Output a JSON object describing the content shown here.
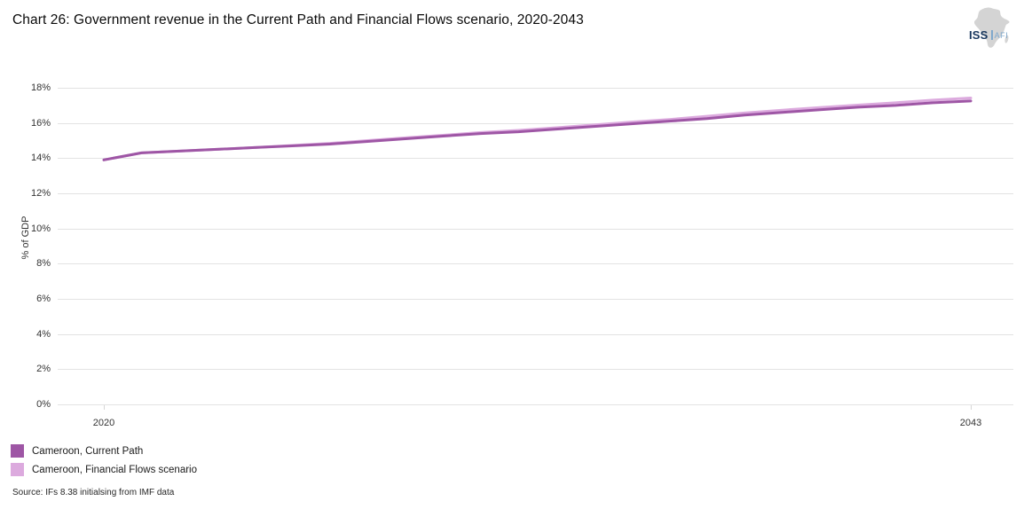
{
  "header": {
    "title": "Chart 26: Government revenue in the Current Path and Financial Flows scenario, 2020-2043",
    "logo": {
      "org": "ISS",
      "unit": "AFI"
    }
  },
  "chart_data": {
    "type": "line",
    "title": "Chart 26: Government revenue in the Current Path and Financial Flows scenario, 2020-2043",
    "xlabel": "",
    "ylabel": "% of GDP",
    "ylim": [
      0,
      18
    ],
    "y_ticks_percent": [
      0,
      2,
      4,
      6,
      8,
      10,
      12,
      14,
      16,
      18
    ],
    "y_tick_suffix": "%",
    "x": [
      2020,
      2021,
      2022,
      2023,
      2024,
      2025,
      2026,
      2027,
      2028,
      2029,
      2030,
      2031,
      2032,
      2033,
      2034,
      2035,
      2036,
      2037,
      2038,
      2039,
      2040,
      2041,
      2042,
      2043
    ],
    "x_tick_years": [
      2020,
      2043
    ],
    "grid": true,
    "legend_position": "bottom-left",
    "gridline_color": "#e3e3e3",
    "series": [
      {
        "name": "Cameroon, Current Path",
        "color": "#9e56a5",
        "values": [
          13.9,
          14.3,
          14.4,
          14.5,
          14.6,
          14.7,
          14.8,
          14.95,
          15.1,
          15.25,
          15.4,
          15.5,
          15.65,
          15.8,
          15.95,
          16.1,
          16.25,
          16.45,
          16.6,
          16.75,
          16.9,
          17.0,
          17.15,
          17.25
        ]
      },
      {
        "name": "Cameroon, Financial Flows scenario",
        "color": "#dcaade",
        "values": [
          13.9,
          14.3,
          14.4,
          14.5,
          14.6,
          14.72,
          14.84,
          15.0,
          15.16,
          15.3,
          15.46,
          15.58,
          15.73,
          15.89,
          16.05,
          16.2,
          16.38,
          16.57,
          16.73,
          16.88,
          17.02,
          17.15,
          17.3,
          17.42
        ]
      }
    ]
  },
  "footer": {
    "source": "Source: IFs 8.38 initialsing from IMF data"
  }
}
